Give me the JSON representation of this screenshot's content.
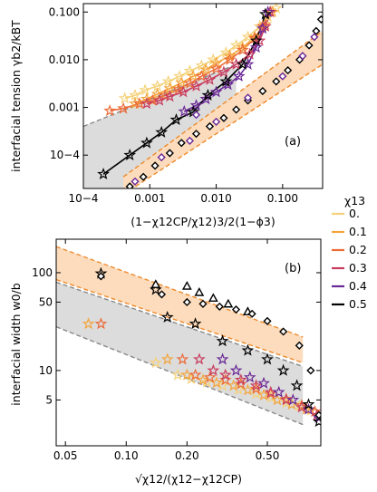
{
  "colors": {
    "0.": "#f5d27a",
    "0.1": "#f4a43c",
    "0.2": "#ec6a36",
    "0.3": "#c83b5e",
    "0.4": "#6a2796",
    "0.5": "#000000",
    "band_orange": "#fcdcbc",
    "band_gray": "#dcdcdc",
    "dash_orange": "#ef8a2c",
    "dash_gray": "#888888"
  },
  "legend": {
    "title": "χ13",
    "entries": [
      "0.",
      "0.1",
      "0.2",
      "0.3",
      "0.4",
      "0.5"
    ]
  },
  "chart_data": [
    {
      "type": "scatter",
      "panel_label": "(a)",
      "xlabel": "(1−χ12CP/χ12)3/2(1−ϕ3)",
      "ylabel": "interfacial tension γb2/kBT",
      "xscale": "log",
      "yscale": "log",
      "xlim": [
        0.0001,
        0.4
      ],
      "ylim": [
        2e-05,
        0.15
      ],
      "xticks": [
        "10−4",
        "0.001",
        "0.010",
        "0.100"
      ],
      "yticks": [
        "10−4",
        "0.001",
        "0.010",
        "0.100"
      ],
      "grid": false,
      "series": [
        {
          "name": "0.",
          "marker": "star",
          "points": [
            [
              0.00042,
              0.00155
            ],
            [
              0.0006,
              0.0018
            ],
            [
              0.00085,
              0.0023
            ],
            [
              0.0013,
              0.0028
            ],
            [
              0.0019,
              0.0035
            ],
            [
              0.0028,
              0.0045
            ],
            [
              0.004,
              0.0058
            ],
            [
              0.006,
              0.0075
            ],
            [
              0.009,
              0.01
            ],
            [
              0.014,
              0.014
            ],
            [
              0.02,
              0.02
            ],
            [
              0.03,
              0.03
            ],
            [
              0.045,
              0.05
            ],
            [
              0.06,
              0.08
            ],
            [
              0.08,
              0.12
            ]
          ]
        },
        {
          "name": "0.1",
          "marker": "star",
          "points": [
            [
              0.0006,
              0.0012
            ],
            [
              0.0009,
              0.0015
            ],
            [
              0.0013,
              0.0019
            ],
            [
              0.002,
              0.0025
            ],
            [
              0.003,
              0.0033
            ],
            [
              0.0045,
              0.0045
            ],
            [
              0.007,
              0.0062
            ],
            [
              0.01,
              0.0085
            ],
            [
              0.016,
              0.012
            ],
            [
              0.025,
              0.018
            ],
            [
              0.038,
              0.03
            ],
            [
              0.055,
              0.055
            ],
            [
              0.07,
              0.1
            ]
          ]
        },
        {
          "name": "0.2",
          "marker": "star",
          "points": [
            [
              0.00025,
              0.00085
            ],
            [
              0.0004,
              0.00095
            ],
            [
              0.0007,
              0.0012
            ],
            [
              0.0011,
              0.0014
            ],
            [
              0.0017,
              0.0018
            ],
            [
              0.0027,
              0.0024
            ],
            [
              0.004,
              0.0032
            ],
            [
              0.006,
              0.0045
            ],
            [
              0.01,
              0.0065
            ],
            [
              0.016,
              0.01
            ],
            [
              0.025,
              0.016
            ],
            [
              0.038,
              0.028
            ],
            [
              0.05,
              0.05
            ],
            [
              0.065,
              0.1
            ]
          ]
        },
        {
          "name": "0.3",
          "marker": "star",
          "points": [
            [
              0.0009,
              0.0012
            ],
            [
              0.0014,
              0.0014
            ],
            [
              0.002,
              0.0017
            ],
            [
              0.0032,
              0.0021
            ],
            [
              0.005,
              0.0028
            ],
            [
              0.008,
              0.0038
            ],
            [
              0.013,
              0.0055
            ],
            [
              0.02,
              0.008
            ],
            [
              0.032,
              0.013
            ],
            [
              0.045,
              0.025
            ],
            [
              0.055,
              0.05
            ],
            [
              0.065,
              0.1
            ]
          ]
        },
        {
          "name": "0.4",
          "marker": "star",
          "points": [
            [
              0.0033,
              0.00082
            ],
            [
              0.005,
              0.0011
            ],
            [
              0.007,
              0.0015
            ],
            [
              0.01,
              0.0021
            ],
            [
              0.015,
              0.003
            ],
            [
              0.022,
              0.0045
            ],
            [
              0.03,
              0.008
            ],
            [
              0.04,
              0.018
            ],
            [
              0.05,
              0.045
            ],
            [
              0.06,
              0.1
            ]
          ]
        },
        {
          "name": "0.5",
          "marker": "star",
          "points": [
            [
              0.0002,
              4e-05
            ],
            [
              0.0005,
              0.0001
            ],
            [
              0.0009,
              0.00018
            ],
            [
              0.0015,
              0.0003
            ],
            [
              0.0025,
              0.00055
            ],
            [
              0.0045,
              0.0008
            ],
            [
              0.0075,
              0.0018
            ],
            [
              0.014,
              0.0035
            ],
            [
              0.025,
              0.008
            ],
            [
              0.04,
              0.025
            ],
            [
              0.055,
              0.09
            ]
          ]
        },
        {
          "name": "0.5",
          "marker": "diamond",
          "points": [
            [
              0.0005,
              2.2e-05
            ],
            [
              0.0008,
              3.5e-05
            ],
            [
              0.0012,
              6e-05
            ],
            [
              0.002,
              0.00011
            ],
            [
              0.003,
              0.00018
            ],
            [
              0.005,
              0.00028
            ],
            [
              0.008,
              0.0004
            ],
            [
              0.013,
              0.0006
            ],
            [
              0.02,
              0.0009
            ],
            [
              0.03,
              0.0014
            ],
            [
              0.05,
              0.0022
            ],
            [
              0.08,
              0.0035
            ],
            [
              0.12,
              0.006
            ],
            [
              0.18,
              0.01
            ],
            [
              0.25,
              0.02
            ],
            [
              0.32,
              0.04
            ],
            [
              0.38,
              0.07
            ]
          ]
        },
        {
          "name": "0.4",
          "marker": "diamond",
          "points": [
            [
              0.0006,
              2.8e-05
            ],
            [
              0.0015,
              9e-05
            ],
            [
              0.004,
              0.0002
            ],
            [
              0.005,
              0.0007
            ],
            [
              0.01,
              0.0005
            ],
            [
              0.03,
              0.0016
            ],
            [
              0.1,
              0.0045
            ],
            [
              0.2,
              0.012
            ],
            [
              0.3,
              0.03
            ]
          ]
        }
      ],
      "bands": [
        {
          "fill": "band_gray",
          "x": [
            0.0001,
            0.02
          ],
          "y_lower": [
            5e-06,
            0.0007
          ],
          "y_upper": [
            0.0004,
            0.008
          ]
        },
        {
          "fill": "band_orange",
          "x": [
            0.0004,
            0.4
          ],
          "y_lower": [
            1.5e-05,
            0.008
          ],
          "y_upper": [
            3.5e-05,
            0.04
          ]
        }
      ]
    },
    {
      "type": "scatter",
      "panel_label": "(b)",
      "xlabel": "√χ12/(χ12−χ12CP)",
      "ylabel": "interfacial width w0/b",
      "xscale": "log",
      "yscale": "log",
      "xlim": [
        0.045,
        0.92
      ],
      "ylim": [
        1.7,
        220
      ],
      "xticks": [
        "0.05",
        "0.10",
        "0.20",
        "0.50"
      ],
      "yticks": [
        "5",
        "10",
        "50",
        "100"
      ],
      "grid": false,
      "series": [
        {
          "name": "0.",
          "marker": "star",
          "points": [
            [
              0.14,
              12
            ],
            [
              0.18,
              9
            ],
            [
              0.21,
              8.2
            ],
            [
              0.25,
              7.6
            ],
            [
              0.3,
              7
            ],
            [
              0.36,
              6.4
            ],
            [
              0.44,
              5.8
            ],
            [
              0.52,
              5.3
            ],
            [
              0.62,
              4.7
            ],
            [
              0.72,
              4.3
            ],
            [
              0.82,
              3.9
            ]
          ]
        },
        {
          "name": "0.1",
          "marker": "star",
          "points": [
            [
              0.065,
              30
            ],
            [
              0.16,
              13
            ],
            [
              0.2,
              9
            ],
            [
              0.24,
              8
            ],
            [
              0.28,
              7.5
            ],
            [
              0.34,
              7
            ],
            [
              0.4,
              6.3
            ],
            [
              0.48,
              5.6
            ],
            [
              0.56,
              5
            ],
            [
              0.66,
              4.5
            ],
            [
              0.78,
              4
            ]
          ]
        },
        {
          "name": "0.2",
          "marker": "star",
          "points": [
            [
              0.075,
              30
            ],
            [
              0.19,
              13
            ],
            [
              0.22,
              9
            ],
            [
              0.26,
              8.5
            ],
            [
              0.31,
              8
            ],
            [
              0.37,
              7.3
            ],
            [
              0.44,
              6.5
            ],
            [
              0.52,
              5.8
            ],
            [
              0.62,
              5.1
            ],
            [
              0.74,
              4.4
            ],
            [
              0.86,
              3.8
            ]
          ]
        },
        {
          "name": "0.3",
          "marker": "star",
          "points": [
            [
              0.23,
              13
            ],
            [
              0.27,
              10
            ],
            [
              0.31,
              9
            ],
            [
              0.37,
              8
            ],
            [
              0.44,
              7
            ],
            [
              0.52,
              6
            ],
            [
              0.62,
              5
            ],
            [
              0.74,
              4.2
            ],
            [
              0.88,
              3.5
            ]
          ]
        },
        {
          "name": "0.4",
          "marker": "star",
          "points": [
            [
              0.3,
              13
            ],
            [
              0.35,
              10
            ],
            [
              0.41,
              8.5
            ],
            [
              0.48,
              7.4
            ],
            [
              0.57,
              6
            ],
            [
              0.67,
              5
            ],
            [
              0.8,
              4
            ],
            [
              0.9,
              3.3
            ]
          ]
        },
        {
          "name": "0.5",
          "marker": "star",
          "points": [
            [
              0.075,
              98
            ],
            [
              0.14,
              67
            ],
            [
              0.16,
              35
            ],
            [
              0.22,
              30
            ],
            [
              0.3,
              20
            ],
            [
              0.4,
              16
            ],
            [
              0.5,
              13
            ],
            [
              0.6,
              10
            ],
            [
              0.7,
              7
            ],
            [
              0.8,
              4.5
            ],
            [
              0.9,
              3
            ]
          ]
        },
        {
          "name": "0.5",
          "marker": "triangle",
          "points": [
            [
              0.14,
              76
            ],
            [
              0.2,
              73
            ],
            [
              0.23,
              63
            ],
            [
              0.27,
              55
            ],
            [
              0.32,
              48
            ],
            [
              0.4,
              40
            ]
          ]
        },
        {
          "name": "0.5",
          "marker": "diamond",
          "points": [
            [
              0.075,
              92
            ],
            [
              0.15,
              60
            ],
            [
              0.2,
              50
            ],
            [
              0.24,
              48
            ],
            [
              0.29,
              45
            ],
            [
              0.35,
              42
            ],
            [
              0.42,
              38
            ],
            [
              0.5,
              32
            ],
            [
              0.6,
              25
            ],
            [
              0.72,
              18
            ],
            [
              0.82,
              10
            ],
            [
              0.9,
              3.5
            ]
          ]
        }
      ],
      "bands": [
        {
          "fill": "band_orange",
          "x": [
            0.045,
            0.75
          ],
          "y_lower": [
            85,
            12
          ],
          "y_upper": [
            185,
            22
          ]
        },
        {
          "fill": "band_gray",
          "x": [
            0.045,
            0.75
          ],
          "y_lower": [
            28,
            2.8
          ],
          "y_upper": [
            80,
            11
          ]
        }
      ]
    }
  ]
}
